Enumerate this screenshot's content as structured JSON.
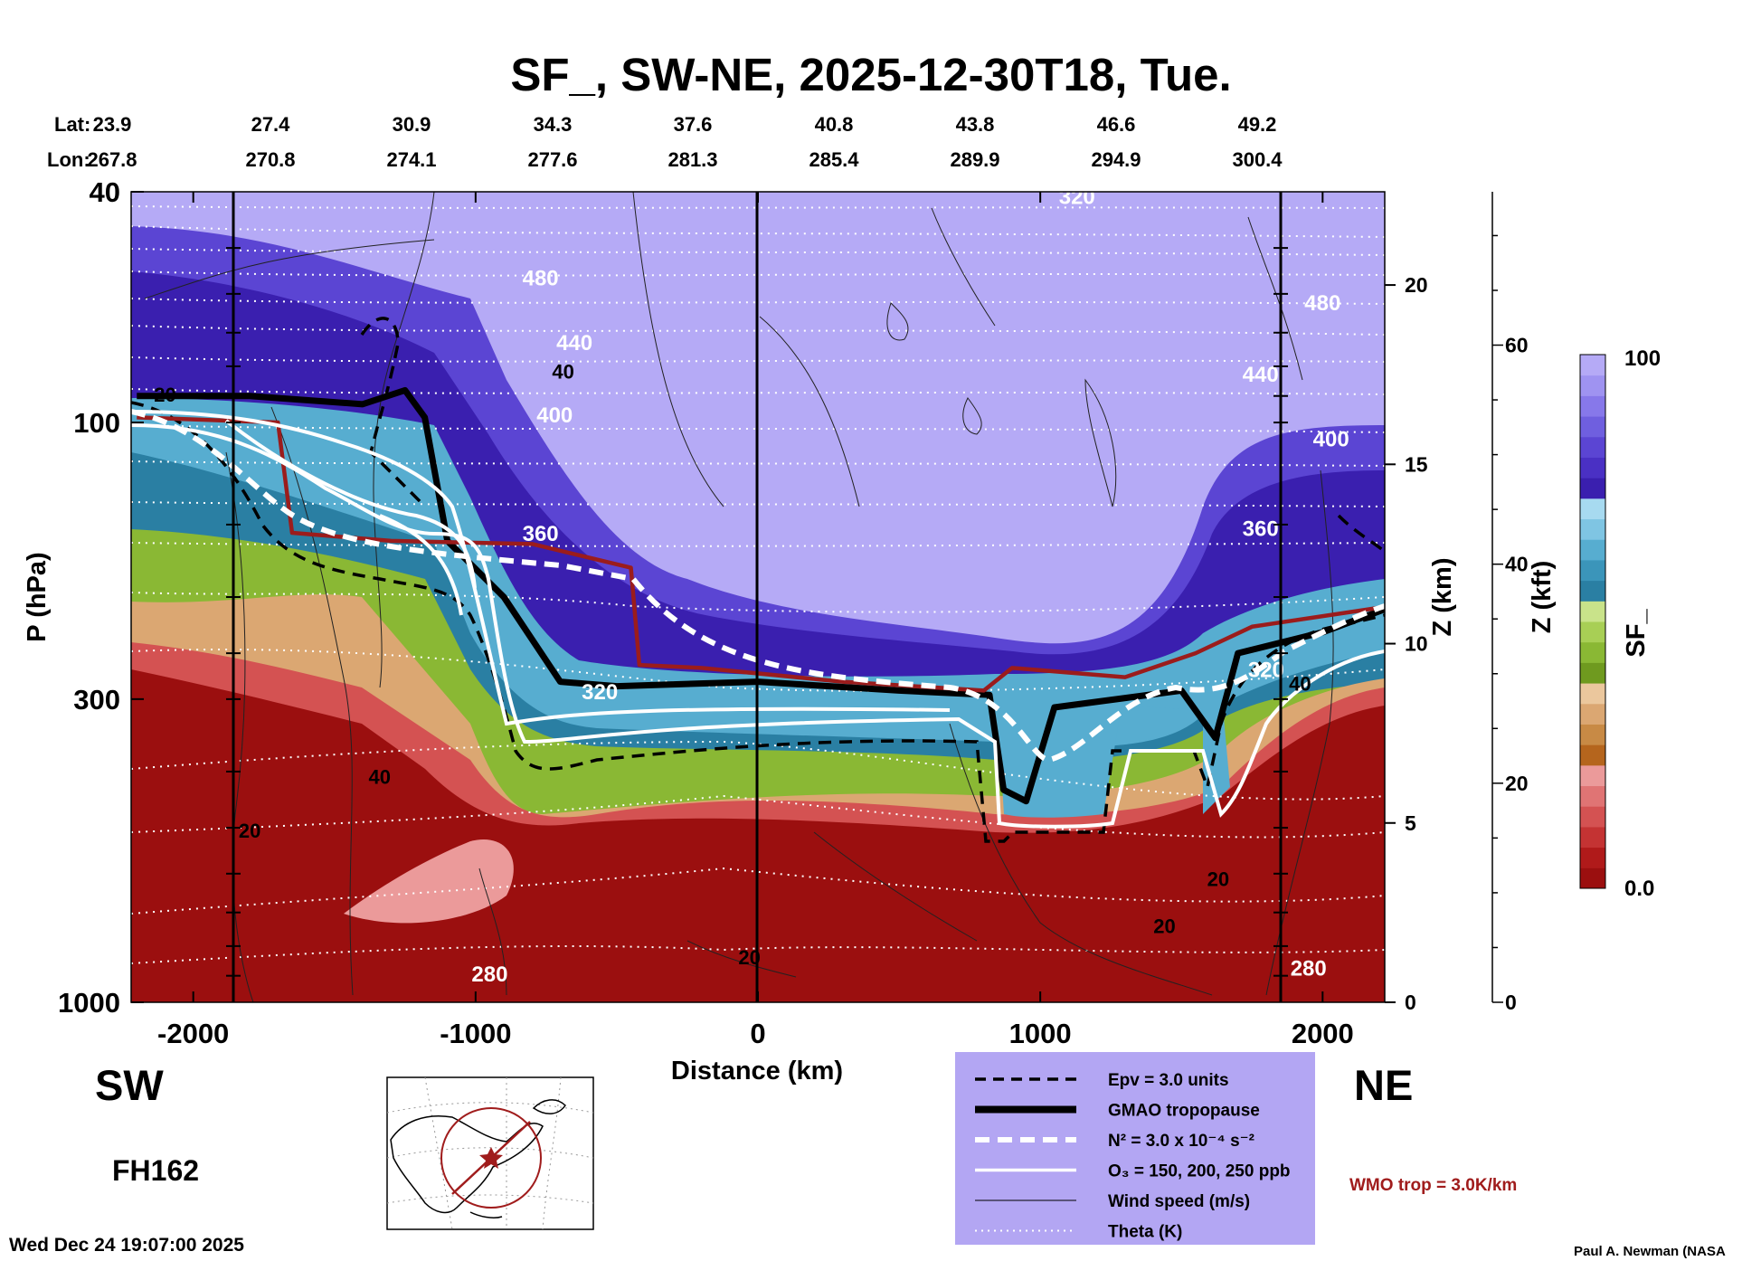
{
  "title": "SF_, SW-NE, 2025-12-30T18, Tue.",
  "lat_label": "Lat:",
  "lon_label": "Lon:",
  "lat_values": [
    "23.9",
    "27.4",
    "30.9",
    "34.3",
    "37.6",
    "40.8",
    "43.8",
    "46.6",
    "49.2"
  ],
  "lon_values": [
    "267.8",
    "270.8",
    "274.1",
    "277.6",
    "281.3",
    "285.4",
    "289.9",
    "294.9",
    "300.4"
  ],
  "left_label": "SW",
  "right_label": "NE",
  "forecast_hour": "FH162",
  "timestamp": "Wed Dec 24 19:07:00 2025",
  "credit": "Paul A. Newman (NASA",
  "wmo_note": "WMO trop = 3.0K/km",
  "legend": {
    "items": [
      {
        "label": "Epv = 3.0 units",
        "style": "dashed-black"
      },
      {
        "label": "GMAO tropopause",
        "style": "thick-black"
      },
      {
        "label": "N² = 3.0 x 10⁻⁴ s⁻²",
        "style": "dashed-white"
      },
      {
        "label": "O₃ = 150, 200, 250 ppb",
        "style": "solid-white"
      },
      {
        "label": "Wind speed (m/s)",
        "style": "thin-black"
      },
      {
        "label": "Theta (K)",
        "style": "dotted-white"
      }
    ],
    "background": "#b3a6f3"
  },
  "colorbar": {
    "title": "SF_",
    "max_label": "100",
    "min_label": "0.0",
    "colors": [
      "#9b0f0f",
      "#b01a1a",
      "#c43333",
      "#d45252",
      "#e07474",
      "#eb9a9a",
      "#b5651d",
      "#c88a45",
      "#dba772",
      "#ebc79d",
      "#6f9a1f",
      "#8ab834",
      "#a8cf55",
      "#c9e38a",
      "#2a7fa3",
      "#3b95ba",
      "#57add0",
      "#7fc5e3",
      "#a7daf0",
      "#3a1faf",
      "#4a30c4",
      "#5b45d3",
      "#6f5fdf",
      "#8778ea",
      "#9f93f1",
      "#b5aaf6"
    ]
  },
  "chart_data": {
    "type": "heatmap",
    "title": "SF_, SW-NE, 2025-12-30T18, Tue.",
    "xlabel": "Distance (km)",
    "ylabel": "P (hPa)",
    "y2label": "Z (km)",
    "y3label": "Z (kft)",
    "xlim": [
      -2220,
      2220
    ],
    "ylim": [
      1000,
      40
    ],
    "x_ticks": [
      -2000,
      -1000,
      0,
      1000,
      2000
    ],
    "x_tick_labels": [
      "-2000",
      "-1000",
      "0",
      "1000",
      "2000"
    ],
    "y_ticks": [
      40,
      100,
      300,
      1000
    ],
    "y_tick_labels": [
      "40",
      "100",
      "300",
      "1000"
    ],
    "z_km_ticks": [
      0,
      5,
      10,
      15,
      20
    ],
    "z_km_tick_labels": [
      "0",
      "5",
      "10",
      "15",
      "20"
    ],
    "z_kft_ticks": [
      0,
      20,
      40,
      60
    ],
    "z_kft_tick_labels": [
      "0",
      "20",
      "40",
      "60"
    ],
    "colorbar_range": [
      0.0,
      100
    ],
    "theta_labels_K": [
      {
        "x": -770,
        "p": 58,
        "label": "480"
      },
      {
        "x": 2000,
        "p": 64,
        "label": "480"
      },
      {
        "x": -650,
        "p": 75,
        "label": "440"
      },
      {
        "x": 1780,
        "p": 85,
        "label": "440"
      },
      {
        "x": -720,
        "p": 100,
        "label": "400"
      },
      {
        "x": 2030,
        "p": 110,
        "label": "400"
      },
      {
        "x": -770,
        "p": 160,
        "label": "360"
      },
      {
        "x": 1780,
        "p": 157,
        "label": "360"
      },
      {
        "x": -560,
        "p": 300,
        "label": "320"
      },
      {
        "x": 1800,
        "p": 275,
        "label": "320"
      },
      {
        "x": 1130,
        "p": 42,
        "label": "320"
      },
      {
        "x": -950,
        "p": 920,
        "label": "280"
      },
      {
        "x": 1950,
        "p": 900,
        "label": "280"
      }
    ],
    "wind_labels_ms": [
      {
        "x": -2100,
        "p": 92,
        "label": "20"
      },
      {
        "x": -690,
        "p": 84,
        "label": "40"
      },
      {
        "x": -1340,
        "p": 420,
        "label": "40"
      },
      {
        "x": -1800,
        "p": 520,
        "label": "20"
      },
      {
        "x": 1920,
        "p": 290,
        "label": "40"
      },
      {
        "x": 1630,
        "p": 630,
        "label": "20"
      },
      {
        "x": 1440,
        "p": 760,
        "label": "20"
      },
      {
        "x": -30,
        "p": 860,
        "label": "20"
      }
    ],
    "gmao_tropopause_hPa": [
      {
        "x": -2200,
        "p": 90
      },
      {
        "x": -1800,
        "p": 90
      },
      {
        "x": -1400,
        "p": 93
      },
      {
        "x": -1250,
        "p": 88
      },
      {
        "x": -1180,
        "p": 98
      },
      {
        "x": -1100,
        "p": 160
      },
      {
        "x": -900,
        "p": 200
      },
      {
        "x": -700,
        "p": 280
      },
      {
        "x": -500,
        "p": 285
      },
      {
        "x": 0,
        "p": 280
      },
      {
        "x": 500,
        "p": 290
      },
      {
        "x": 820,
        "p": 295
      },
      {
        "x": 870,
        "p": 430
      },
      {
        "x": 950,
        "p": 450
      },
      {
        "x": 1050,
        "p": 310
      },
      {
        "x": 1500,
        "p": 290
      },
      {
        "x": 1620,
        "p": 350
      },
      {
        "x": 1700,
        "p": 250
      },
      {
        "x": 2000,
        "p": 230
      },
      {
        "x": 2220,
        "p": 210
      }
    ],
    "wmo_tropopause_hPa": [
      {
        "x": -2200,
        "p": 98
      },
      {
        "x": -1700,
        "p": 100
      },
      {
        "x": -1650,
        "p": 155
      },
      {
        "x": -1300,
        "p": 160
      },
      {
        "x": -800,
        "p": 162
      },
      {
        "x": -450,
        "p": 178
      },
      {
        "x": -420,
        "p": 262
      },
      {
        "x": -200,
        "p": 265
      },
      {
        "x": 300,
        "p": 280
      },
      {
        "x": 800,
        "p": 290
      },
      {
        "x": 900,
        "p": 265
      },
      {
        "x": 1300,
        "p": 275
      },
      {
        "x": 1550,
        "p": 250
      },
      {
        "x": 1750,
        "p": 225
      },
      {
        "x": 2220,
        "p": 208
      }
    ]
  }
}
